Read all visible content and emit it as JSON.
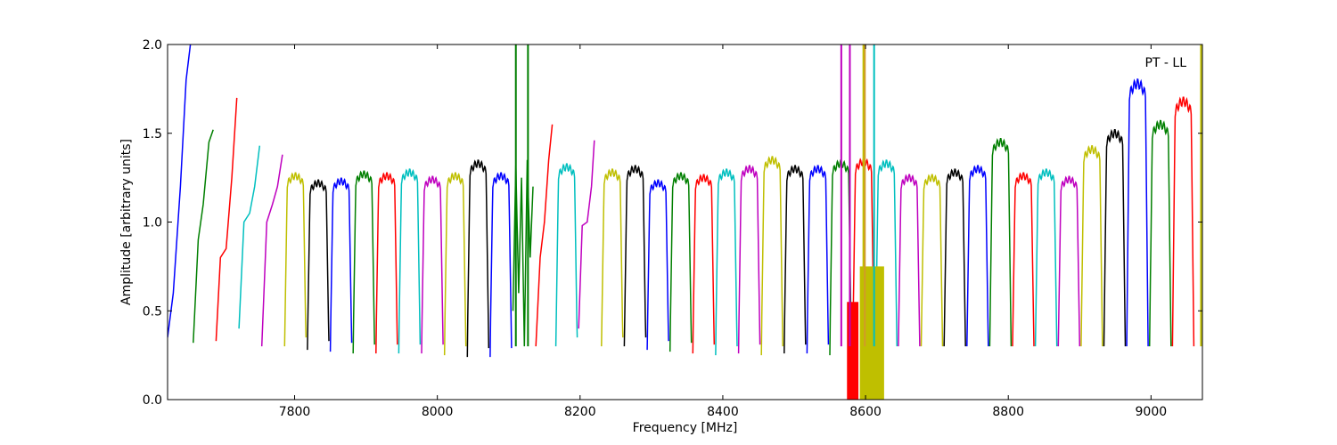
{
  "chart_data": {
    "type": "line",
    "title": "",
    "annotation": "PT - LL",
    "xlabel": "Frequency [MHz]",
    "ylabel": "Amplitude [arbitrary units]",
    "xlim": [
      7622,
      9072
    ],
    "ylim": [
      0.0,
      2.0
    ],
    "x_ticks": [
      7800,
      8000,
      8200,
      8400,
      8600,
      8800,
      9000
    ],
    "y_ticks": [
      "0.0",
      "0.5",
      "1.0",
      "1.5",
      "2.0"
    ],
    "grid": false,
    "legend": "none",
    "colors": [
      "#0000ff",
      "#007f00",
      "#ff0000",
      "#00bfbf",
      "#bf00bf",
      "#bfbf00",
      "#000000"
    ],
    "band_width_mhz": 32,
    "band_starts": [
      7622,
      7654,
      7686,
      7718,
      7750,
      7782,
      7814,
      7846,
      7878,
      7910,
      7942,
      7974,
      8006,
      8038,
      8070,
      8102,
      8134,
      8166,
      8198,
      8230,
      8262,
      8294,
      8326,
      8358,
      8390,
      8422,
      8454,
      8486,
      8518,
      8550,
      8582,
      8614,
      8646,
      8678,
      8710,
      8742,
      8774,
      8806,
      8838,
      8870,
      8902,
      8934,
      8966,
      8998,
      9030
    ],
    "series": [
      {
        "start": 7622,
        "x": [
          7622,
          7630,
          7640,
          7648,
          7654
        ],
        "y": [
          0.35,
          0.6,
          1.2,
          1.8,
          2.0
        ]
      },
      {
        "start": 7658,
        "x": [
          7658,
          7665,
          7672,
          7680,
          7686
        ],
        "y": [
          0.32,
          0.9,
          1.1,
          1.45,
          1.52
        ]
      },
      {
        "start": 7690,
        "x": [
          7690,
          7696,
          7704,
          7712,
          7719
        ],
        "y": [
          0.33,
          0.8,
          0.85,
          1.25,
          1.7
        ]
      },
      {
        "start": 7722,
        "x": [
          7722,
          7729,
          7737,
          7744,
          7751
        ],
        "y": [
          0.4,
          1.0,
          1.05,
          1.2,
          1.43
        ]
      },
      {
        "start": 7754,
        "x": [
          7754,
          7761,
          7769,
          7776,
          7783
        ],
        "y": [
          0.3,
          1.0,
          1.1,
          1.2,
          1.38
        ]
      },
      {
        "start": 7786,
        "y": [
          0.3,
          1.1,
          1.18,
          1.22,
          1.26
        ]
      },
      {
        "start": 7818,
        "y": [
          0.28,
          1.15,
          1.2,
          1.2,
          1.22
        ]
      },
      {
        "start": 7850,
        "y": [
          0.27,
          1.15,
          1.2,
          1.2,
          1.23
        ]
      },
      {
        "start": 7882,
        "y": [
          0.26,
          1.2,
          1.25,
          1.25,
          1.27
        ]
      },
      {
        "start": 7914,
        "y": [
          0.26,
          1.2,
          1.25,
          1.25,
          1.26
        ]
      },
      {
        "start": 7946,
        "y": [
          0.26,
          1.2,
          1.27,
          1.27,
          1.28
        ]
      },
      {
        "start": 7978,
        "y": [
          0.26,
          1.15,
          1.22,
          1.22,
          1.24
        ]
      },
      {
        "start": 8010,
        "y": [
          0.25,
          1.15,
          1.22,
          1.22,
          1.26
        ]
      },
      {
        "start": 8042,
        "y": [
          0.24,
          1.2,
          1.3,
          1.3,
          1.33
        ]
      },
      {
        "start": 8074,
        "y": [
          0.24,
          1.2,
          1.25,
          1.25,
          1.26
        ]
      },
      {
        "start": 8106,
        "x": [
          8106,
          8110,
          8114,
          8118,
          8122,
          8126,
          8130,
          8134
        ],
        "y": [
          0.5,
          1.32,
          0.6,
          1.25,
          0.3,
          1.35,
          0.8,
          1.2
        ]
      },
      {
        "start": 8138,
        "x": [
          8138,
          8144,
          8150,
          8156,
          8161
        ],
        "y": [
          0.3,
          0.8,
          1.0,
          1.35,
          1.55
        ]
      },
      {
        "start": 8166,
        "y": [
          0.3,
          1.05,
          1.1,
          1.2,
          1.31
        ]
      },
      {
        "start": 8198,
        "x": [
          8198,
          8203,
          8210,
          8216,
          8220
        ],
        "y": [
          0.4,
          0.98,
          1.0,
          1.2,
          1.46
        ]
      },
      {
        "start": 8230,
        "y": [
          0.3,
          1.1,
          1.12,
          1.2,
          1.28
        ]
      },
      {
        "start": 8262,
        "y": [
          0.3,
          1.1,
          1.12,
          1.2,
          1.3
        ]
      },
      {
        "start": 8294,
        "y": [
          0.28,
          1.15,
          1.18,
          1.2,
          1.22
        ]
      },
      {
        "start": 8326,
        "y": [
          0.27,
          1.2,
          1.22,
          1.24,
          1.26
        ]
      },
      {
        "start": 8358,
        "y": [
          0.26,
          1.2,
          1.22,
          1.24,
          1.25
        ]
      },
      {
        "start": 8390,
        "y": [
          0.25,
          1.2,
          1.24,
          1.26,
          1.28
        ]
      },
      {
        "start": 8422,
        "y": [
          0.26,
          1.2,
          1.25,
          1.27,
          1.3
        ]
      },
      {
        "start": 8454,
        "y": [
          0.25,
          1.2,
          1.25,
          1.3,
          1.35
        ]
      },
      {
        "start": 8486,
        "y": [
          0.26,
          1.2,
          1.22,
          1.28,
          1.3
        ]
      },
      {
        "start": 8518,
        "y": [
          0.26,
          1.2,
          1.22,
          1.25,
          1.3
        ]
      },
      {
        "start": 8550,
        "y": [
          0.25,
          1.2,
          1.25,
          1.3,
          1.33
        ]
      }
    ],
    "rfi_spikes": [
      {
        "x": 8110,
        "y_top": 2.0,
        "color": "#007f00"
      },
      {
        "x": 8127,
        "y_top": 2.0,
        "color": "#007f00"
      },
      {
        "x": 8566,
        "y_top": 2.0,
        "color": "#bf00bf"
      },
      {
        "x": 8578,
        "y_top": 2.0,
        "color": "#bf00bf"
      },
      {
        "x": 8597,
        "y_top": 2.0,
        "color": "#bfbf00"
      },
      {
        "x": 8599,
        "y_top": 2.0,
        "color": "#d29a2a"
      },
      {
        "x": 8612,
        "y_top": 2.0,
        "color": "#00bfbf"
      },
      {
        "x": 9070,
        "y_top": 2.0,
        "color": "#bfbf00"
      }
    ],
    "rfi_fill": [
      {
        "x0": 8574,
        "x1": 8590,
        "y0": 0.0,
        "y1": 0.55,
        "color": "#ff0000"
      },
      {
        "x0": 8592,
        "x1": 8626,
        "y0": 0.0,
        "y1": 0.75,
        "color": "#bfbf00"
      }
    ]
  }
}
